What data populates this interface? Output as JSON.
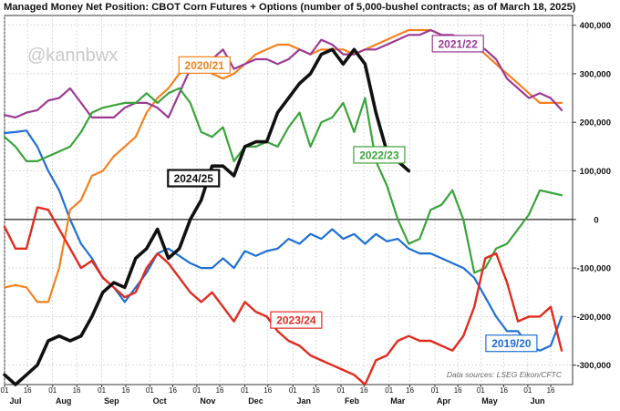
{
  "chart_data": {
    "type": "line",
    "title": "Managed Money Net Position: CBOT Corn Futures + Options (number of 5,000-bushel contracts; as of March 18, 2025)",
    "watermark": "@kannbwx",
    "source": "Data sources: LSEG Eikon/CFTC",
    "ylim": [
      -340000,
      420000
    ],
    "y_ticks": [
      {
        "value": 400000,
        "label": "400,000"
      },
      {
        "value": 300000,
        "label": "300,000"
      },
      {
        "value": 200000,
        "label": "200,000"
      },
      {
        "value": 100000,
        "label": "100,000"
      },
      {
        "value": 0,
        "label": "0"
      },
      {
        "value": -100000,
        "label": "-100,000"
      },
      {
        "value": -200000,
        "label": "-200,000"
      },
      {
        "value": -300000,
        "label": "-300,000"
      }
    ],
    "week_count": 52,
    "x_day_ticks": [
      {
        "week": 0,
        "label": "01"
      },
      {
        "week": 2.1,
        "label": "16"
      },
      {
        "week": 4.4,
        "label": "01"
      },
      {
        "week": 6.6,
        "label": "16"
      },
      {
        "week": 8.9,
        "label": "01"
      },
      {
        "week": 11.1,
        "label": "16"
      },
      {
        "week": 13.3,
        "label": "01"
      },
      {
        "week": 15.4,
        "label": "16"
      },
      {
        "week": 17.6,
        "label": "01"
      },
      {
        "week": 19.7,
        "label": "16"
      },
      {
        "week": 22.0,
        "label": "01"
      },
      {
        "week": 24.1,
        "label": "16"
      },
      {
        "week": 26.4,
        "label": "01"
      },
      {
        "week": 28.5,
        "label": "16"
      },
      {
        "week": 30.8,
        "label": "01"
      },
      {
        "week": 32.9,
        "label": "16"
      },
      {
        "week": 35.2,
        "label": "01"
      },
      {
        "week": 37.1,
        "label": "16"
      },
      {
        "week": 39.4,
        "label": "01"
      },
      {
        "week": 41.5,
        "label": "16"
      },
      {
        "week": 43.6,
        "label": "01"
      },
      {
        "week": 45.7,
        "label": "16"
      },
      {
        "week": 47.9,
        "label": "01"
      },
      {
        "week": 50.0,
        "label": "16"
      }
    ],
    "x_month_labels": [
      {
        "week": 1.0,
        "label": "Jul"
      },
      {
        "week": 5.4,
        "label": "Aug"
      },
      {
        "week": 9.8,
        "label": "Sep"
      },
      {
        "week": 14.2,
        "label": "Oct"
      },
      {
        "week": 18.6,
        "label": "Nov"
      },
      {
        "week": 23.0,
        "label": "Dec"
      },
      {
        "week": 27.4,
        "label": "Jan"
      },
      {
        "week": 31.8,
        "label": "Feb"
      },
      {
        "week": 36.0,
        "label": "Mar"
      },
      {
        "week": 40.2,
        "label": "Apr"
      },
      {
        "week": 44.4,
        "label": "May"
      },
      {
        "week": 48.8,
        "label": "Jun"
      }
    ],
    "series": [
      {
        "name": "2019/20",
        "color": "#1f6fd6",
        "stroke_width": 2.2,
        "label_week": 46.4,
        "label_value": -255000,
        "x": [
          0,
          1,
          2,
          3,
          4,
          5,
          6,
          7,
          8,
          9,
          10,
          11,
          12,
          13,
          14,
          15,
          16,
          17,
          18,
          19,
          20,
          21,
          22,
          23,
          24,
          25,
          26,
          27,
          28,
          29,
          30,
          31,
          32,
          33,
          34,
          35,
          36,
          37,
          38,
          39,
          40,
          41,
          42,
          43,
          44,
          45,
          46,
          47,
          48,
          49,
          50,
          51
        ],
        "values": [
          178000,
          180000,
          183000,
          150000,
          100000,
          60000,
          0,
          -50000,
          -80000,
          -120000,
          -140000,
          -170000,
          -140000,
          -110000,
          -70000,
          -60000,
          -75000,
          -90000,
          -100000,
          -100000,
          -80000,
          -100000,
          -65000,
          -75000,
          -65000,
          -60000,
          -40000,
          -50000,
          -30000,
          -40000,
          -20000,
          -40000,
          -30000,
          -50000,
          -30000,
          -45000,
          -40000,
          -60000,
          -70000,
          -70000,
          -80000,
          -90000,
          -100000,
          -120000,
          -160000,
          -200000,
          -230000,
          -230000,
          -260000,
          -270000,
          -260000,
          -200000
        ]
      },
      {
        "name": "2020/21",
        "color": "#f3811e",
        "stroke_width": 2.2,
        "label_week": 18.3,
        "label_value": 318000,
        "x": [
          0,
          1,
          2,
          3,
          4,
          5,
          6,
          7,
          8,
          9,
          10,
          11,
          12,
          13,
          14,
          15,
          16,
          17,
          18,
          19,
          20,
          21,
          22,
          23,
          24,
          25,
          26,
          27,
          28,
          29,
          30,
          31,
          32,
          33,
          34,
          35,
          36,
          37,
          38,
          39,
          40,
          41,
          42,
          43,
          44,
          45,
          46,
          47,
          48,
          49,
          50,
          51
        ],
        "values": [
          -140000,
          -135000,
          -140000,
          -170000,
          -170000,
          -100000,
          20000,
          40000,
          90000,
          100000,
          130000,
          150000,
          170000,
          220000,
          250000,
          270000,
          300000,
          310000,
          320000,
          300000,
          290000,
          300000,
          320000,
          340000,
          350000,
          360000,
          360000,
          350000,
          340000,
          350000,
          350000,
          350000,
          340000,
          350000,
          360000,
          370000,
          380000,
          390000,
          390000,
          390000,
          380000,
          370000,
          360000,
          360000,
          340000,
          320000,
          300000,
          280000,
          260000,
          240000,
          240000,
          240000
        ]
      },
      {
        "name": "2021/22",
        "color": "#9b3a94",
        "stroke_width": 2.2,
        "label_week": 41.5,
        "label_value": 362000,
        "x": [
          0,
          1,
          2,
          3,
          4,
          5,
          6,
          7,
          8,
          9,
          10,
          11,
          12,
          13,
          14,
          15,
          16,
          17,
          18,
          19,
          20,
          21,
          22,
          23,
          24,
          25,
          26,
          27,
          28,
          29,
          30,
          31,
          32,
          33,
          34,
          35,
          36,
          37,
          38,
          39,
          40,
          41,
          42,
          43,
          44,
          45,
          46,
          47,
          48,
          49,
          50,
          51
        ],
        "values": [
          215000,
          210000,
          220000,
          225000,
          245000,
          250000,
          270000,
          240000,
          210000,
          210000,
          210000,
          230000,
          240000,
          240000,
          230000,
          210000,
          260000,
          310000,
          310000,
          330000,
          350000,
          310000,
          320000,
          330000,
          330000,
          320000,
          330000,
          350000,
          340000,
          370000,
          360000,
          340000,
          340000,
          350000,
          350000,
          360000,
          370000,
          380000,
          380000,
          390000,
          380000,
          380000,
          370000,
          360000,
          350000,
          330000,
          290000,
          270000,
          250000,
          260000,
          250000,
          225000
        ]
      },
      {
        "name": "2022/23",
        "color": "#3aa33a",
        "stroke_width": 2.2,
        "label_week": 34.3,
        "label_value": 133000,
        "x": [
          0,
          1,
          2,
          3,
          4,
          5,
          6,
          7,
          8,
          9,
          10,
          11,
          12,
          13,
          14,
          15,
          16,
          17,
          18,
          19,
          20,
          21,
          22,
          23,
          24,
          25,
          26,
          27,
          28,
          29,
          30,
          31,
          32,
          33,
          34,
          35,
          36,
          37,
          38,
          39,
          40,
          41,
          42,
          43,
          44,
          45,
          46,
          47,
          48,
          49,
          50,
          51
        ],
        "values": [
          170000,
          150000,
          120000,
          120000,
          130000,
          140000,
          150000,
          180000,
          220000,
          230000,
          235000,
          240000,
          240000,
          260000,
          240000,
          260000,
          270000,
          240000,
          180000,
          170000,
          190000,
          120000,
          150000,
          150000,
          160000,
          150000,
          190000,
          220000,
          150000,
          200000,
          210000,
          240000,
          180000,
          250000,
          120000,
          70000,
          0,
          -50000,
          -40000,
          20000,
          30000,
          60000,
          0,
          -110000,
          -100000,
          -60000,
          -50000,
          -20000,
          10000,
          60000,
          55000,
          50000
        ]
      },
      {
        "name": "2023/24",
        "color": "#e22b1f",
        "stroke_width": 2.4,
        "label_week": 26.7,
        "label_value": -207000,
        "x": [
          0,
          1,
          2,
          3,
          4,
          5,
          6,
          7,
          8,
          9,
          10,
          11,
          12,
          13,
          14,
          15,
          16,
          17,
          18,
          19,
          20,
          21,
          22,
          23,
          24,
          25,
          26,
          27,
          28,
          29,
          30,
          31,
          32,
          33,
          34,
          35,
          36,
          37,
          38,
          39,
          40,
          41,
          42,
          43,
          44,
          45,
          46,
          47,
          48,
          49,
          50,
          51
        ],
        "values": [
          -15000,
          -60000,
          -60000,
          25000,
          20000,
          -20000,
          -60000,
          -100000,
          -85000,
          -120000,
          -140000,
          -160000,
          -150000,
          -100000,
          -70000,
          -90000,
          -120000,
          -150000,
          -170000,
          -150000,
          -180000,
          -210000,
          -170000,
          -190000,
          -200000,
          -230000,
          -250000,
          -260000,
          -280000,
          -290000,
          -300000,
          -310000,
          -320000,
          -340000,
          -290000,
          -280000,
          -250000,
          -240000,
          -250000,
          -250000,
          -260000,
          -270000,
          -240000,
          -180000,
          -80000,
          -70000,
          -130000,
          -210000,
          -200000,
          -200000,
          -180000,
          -270000
        ]
      },
      {
        "name": "2024/25",
        "color": "#111111",
        "stroke_width": 3.6,
        "label_week": 17.3,
        "label_value": 85000,
        "x": [
          0,
          1,
          2,
          3,
          4,
          5,
          6,
          7,
          8,
          9,
          10,
          11,
          12,
          13,
          14,
          15,
          16,
          17,
          18,
          19,
          20,
          21,
          22,
          23,
          24,
          25,
          26,
          27,
          28,
          29,
          30,
          31,
          32,
          33,
          34,
          35,
          36,
          37
        ],
        "values": [
          -320000,
          -340000,
          -320000,
          -300000,
          -250000,
          -240000,
          -250000,
          -240000,
          -200000,
          -150000,
          -130000,
          -140000,
          -80000,
          -60000,
          -20000,
          -80000,
          -60000,
          0,
          40000,
          110000,
          110000,
          90000,
          150000,
          160000,
          160000,
          220000,
          250000,
          280000,
          300000,
          340000,
          350000,
          320000,
          350000,
          320000,
          220000,
          140000,
          120000,
          100000
        ]
      }
    ]
  }
}
